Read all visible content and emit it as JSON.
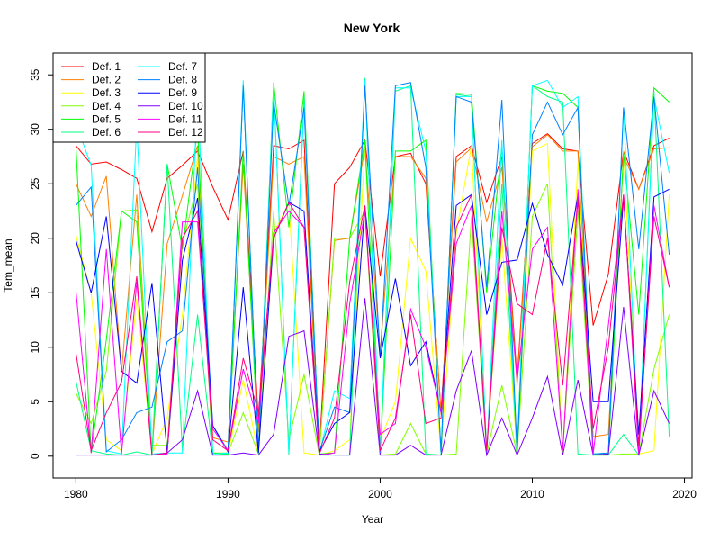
{
  "chart_data": {
    "type": "line",
    "title": "New York",
    "xlabel": "Year",
    "ylabel": "Tem_mean",
    "xlim": [
      1978.5,
      2020.5
    ],
    "ylim": [
      -2,
      37
    ],
    "xticks": [
      1980,
      1990,
      2000,
      2010,
      2020
    ],
    "yticks": [
      0,
      5,
      10,
      15,
      20,
      25,
      30,
      35
    ],
    "grid": false,
    "legend_position": "top-left",
    "x": [
      1980,
      1981,
      1982,
      1983,
      1984,
      1985,
      1986,
      1987,
      1988,
      1989,
      1990,
      1991,
      1992,
      1993,
      1994,
      1995,
      1996,
      1997,
      1998,
      1999,
      2000,
      2001,
      2002,
      2003,
      2004,
      2005,
      2006,
      2007,
      2008,
      2009,
      2010,
      2011,
      2012,
      2013,
      2014,
      2015,
      2016,
      2017,
      2018,
      2019
    ],
    "series": [
      {
        "name": "Def. 1",
        "color": "#FF0000",
        "values": [
          28.5,
          26.8,
          27.0,
          26.3,
          25.5,
          20.6,
          25.5,
          26.7,
          28.0,
          24.7,
          21.7,
          28.0,
          3.2,
          28.5,
          28.2,
          29.0,
          0.5,
          25.0,
          26.5,
          29.0,
          16.5,
          27.5,
          27.8,
          25.0,
          4.0,
          27.5,
          28.5,
          23.3,
          27.5,
          7.0,
          28.7,
          29.6,
          28.2,
          28.0,
          12.0,
          16.7,
          28.0,
          24.5,
          28.5,
          29.2
        ]
      },
      {
        "name": "Def. 2",
        "color": "#FF8000",
        "values": [
          25.0,
          22.0,
          25.7,
          7.7,
          24.0,
          0.3,
          19.5,
          23.9,
          28.5,
          1.7,
          1.3,
          26.8,
          2.2,
          27.5,
          26.8,
          27.5,
          0.3,
          19.8,
          20.0,
          28.3,
          9.5,
          27.5,
          27.5,
          25.5,
          3.8,
          27.0,
          28.3,
          21.5,
          26.5,
          6.5,
          28.4,
          29.5,
          28.0,
          28.0,
          1.8,
          2.0,
          27.5,
          24.5,
          28.2,
          28.3
        ]
      },
      {
        "name": "Def. 3",
        "color": "#FFFF00",
        "values": [
          20.3,
          15.0,
          1.5,
          0.5,
          14.5,
          0.2,
          3.5,
          13.0,
          27.5,
          0.3,
          0.2,
          7.0,
          0.3,
          20.5,
          23.2,
          0.3,
          0.1,
          0.5,
          1.5,
          28.5,
          1.5,
          5.0,
          20.0,
          17.0,
          0.3,
          20.5,
          28.5,
          0.5,
          20.0,
          0.2,
          28.0,
          28.7,
          0.2,
          27.0,
          0.1,
          0.2,
          28.0,
          0.2,
          0.5,
          24.0
        ]
      },
      {
        "name": "Def. 4",
        "color": "#80FF00",
        "values": [
          5.8,
          3.0,
          7.8,
          22.5,
          22.6,
          1.0,
          1.0,
          19.5,
          25.0,
          0.3,
          0.3,
          4.0,
          0.2,
          22.5,
          1.5,
          7.5,
          0.1,
          20.0,
          20.0,
          22.5,
          0.1,
          0.2,
          3.0,
          0.2,
          0.1,
          0.2,
          22.0,
          0.2,
          6.5,
          0.2,
          22.0,
          25.0,
          0.3,
          22.5,
          0.1,
          0.1,
          0.2,
          0.2,
          8.0,
          13.0
        ]
      },
      {
        "name": "Def. 5",
        "color": "#00FF00",
        "values": [
          28.5,
          0.3,
          10.7,
          22.5,
          21.5,
          0.2,
          26.8,
          19.0,
          30.0,
          0.3,
          0.2,
          28.0,
          0.5,
          34.3,
          21.0,
          33.5,
          0.2,
          0.3,
          20.0,
          29.0,
          0.1,
          28.0,
          28.0,
          29.0,
          0.1,
          33.3,
          33.2,
          15.0,
          28.5,
          0.5,
          34.0,
          33.5,
          33.3,
          32.0,
          0.2,
          0.2,
          27.8,
          13.0,
          33.8,
          32.5
        ]
      },
      {
        "name": "Def. 6",
        "color": "#00FF80",
        "values": [
          6.9,
          0.5,
          0.2,
          0.1,
          0.4,
          0.1,
          26.8,
          0.5,
          13.0,
          0.1,
          0.2,
          34.0,
          0.2,
          34.0,
          0.1,
          33.0,
          0.1,
          0.1,
          0.1,
          34.7,
          0.1,
          33.5,
          34.0,
          0.2,
          0.1,
          33.2,
          33.0,
          0.1,
          25.0,
          0.1,
          34.0,
          33.0,
          32.5,
          0.2,
          0.1,
          0.1,
          2.0,
          0.1,
          33.5,
          1.8
        ]
      },
      {
        "name": "Def. 7",
        "color": "#00FFFF",
        "values": [
          30.5,
          26.7,
          0.5,
          0.2,
          30.5,
          0.2,
          0.3,
          0.3,
          33.5,
          0.2,
          0.3,
          34.5,
          0.3,
          34.0,
          0.3,
          32.5,
          0.2,
          6.0,
          5.3,
          34.5,
          0.3,
          33.8,
          33.8,
          28.0,
          0.2,
          33.0,
          33.0,
          0.3,
          29.0,
          0.3,
          34.0,
          34.5,
          32.0,
          33.0,
          0.2,
          0.3,
          32.0,
          0.2,
          33.0,
          26.0
        ]
      },
      {
        "name": "Def. 8",
        "color": "#0080FF",
        "values": [
          23.0,
          24.7,
          0.4,
          1.5,
          4.0,
          4.5,
          10.5,
          11.5,
          26.5,
          2.8,
          0.5,
          34.0,
          0.5,
          32.5,
          23.0,
          32.0,
          0.4,
          4.5,
          4.0,
          34.0,
          9.0,
          34.0,
          34.3,
          26.5,
          0.4,
          33.0,
          32.5,
          15.5,
          32.7,
          0.3,
          29.5,
          32.5,
          29.5,
          32.0,
          0.2,
          0.3,
          32.0,
          19.0,
          33.0,
          18.5
        ]
      },
      {
        "name": "Def. 9",
        "color": "#0000FF",
        "values": [
          19.8,
          15.0,
          22.0,
          7.8,
          6.7,
          15.9,
          0.3,
          18.0,
          23.7,
          2.8,
          0.4,
          15.5,
          0.3,
          20.0,
          23.3,
          22.5,
          0.4,
          3.0,
          4.0,
          23.0,
          9.0,
          16.3,
          8.3,
          10.5,
          4.0,
          23.0,
          24.0,
          13.0,
          17.8,
          18.0,
          23.2,
          18.5,
          15.7,
          24.0,
          5.0,
          5.0,
          23.7,
          2.0,
          23.8,
          24.5
        ]
      },
      {
        "name": "Def. 10",
        "color": "#8000FF",
        "values": [
          0.1,
          0.1,
          0.1,
          0.1,
          0.1,
          0.1,
          0.3,
          1.5,
          6.0,
          0.1,
          0.1,
          0.3,
          0.1,
          2.0,
          11.0,
          11.5,
          0.2,
          0.1,
          0.1,
          14.5,
          0.1,
          0.1,
          1.0,
          0.1,
          0.1,
          6.0,
          9.7,
          0.1,
          3.5,
          0.1,
          3.5,
          7.3,
          0.1,
          7.0,
          0.1,
          0.2,
          13.7,
          0.1,
          6.0,
          3.0
        ]
      },
      {
        "name": "Def. 11",
        "color": "#FF00FF",
        "values": [
          15.2,
          0.3,
          19.0,
          0.2,
          16.0,
          0.1,
          0.2,
          21.5,
          21.5,
          2.5,
          0.5,
          8.0,
          3.0,
          20.5,
          22.5,
          21.0,
          0.1,
          0.3,
          14.0,
          22.5,
          2.0,
          3.0,
          13.5,
          10.0,
          4.0,
          19.5,
          23.0,
          0.5,
          22.5,
          7.0,
          19.0,
          21.0,
          0.5,
          24.5,
          0.2,
          12.0,
          24.0,
          0.2,
          23.0,
          15.5
        ]
      },
      {
        "name": "Def. 12",
        "color": "#FF0080",
        "values": [
          9.5,
          0.5,
          4.0,
          6.8,
          16.5,
          0.1,
          0.3,
          20.0,
          22.5,
          1.5,
          0.5,
          9.0,
          4.0,
          20.0,
          23.3,
          21.0,
          0.2,
          3.5,
          16.0,
          23.0,
          0.5,
          3.5,
          13.0,
          3.0,
          3.5,
          21.0,
          24.0,
          0.5,
          21.0,
          14.0,
          13.0,
          20.0,
          6.5,
          23.5,
          2.5,
          10.0,
          24.0,
          1.0,
          22.0,
          15.5
        ]
      }
    ]
  }
}
